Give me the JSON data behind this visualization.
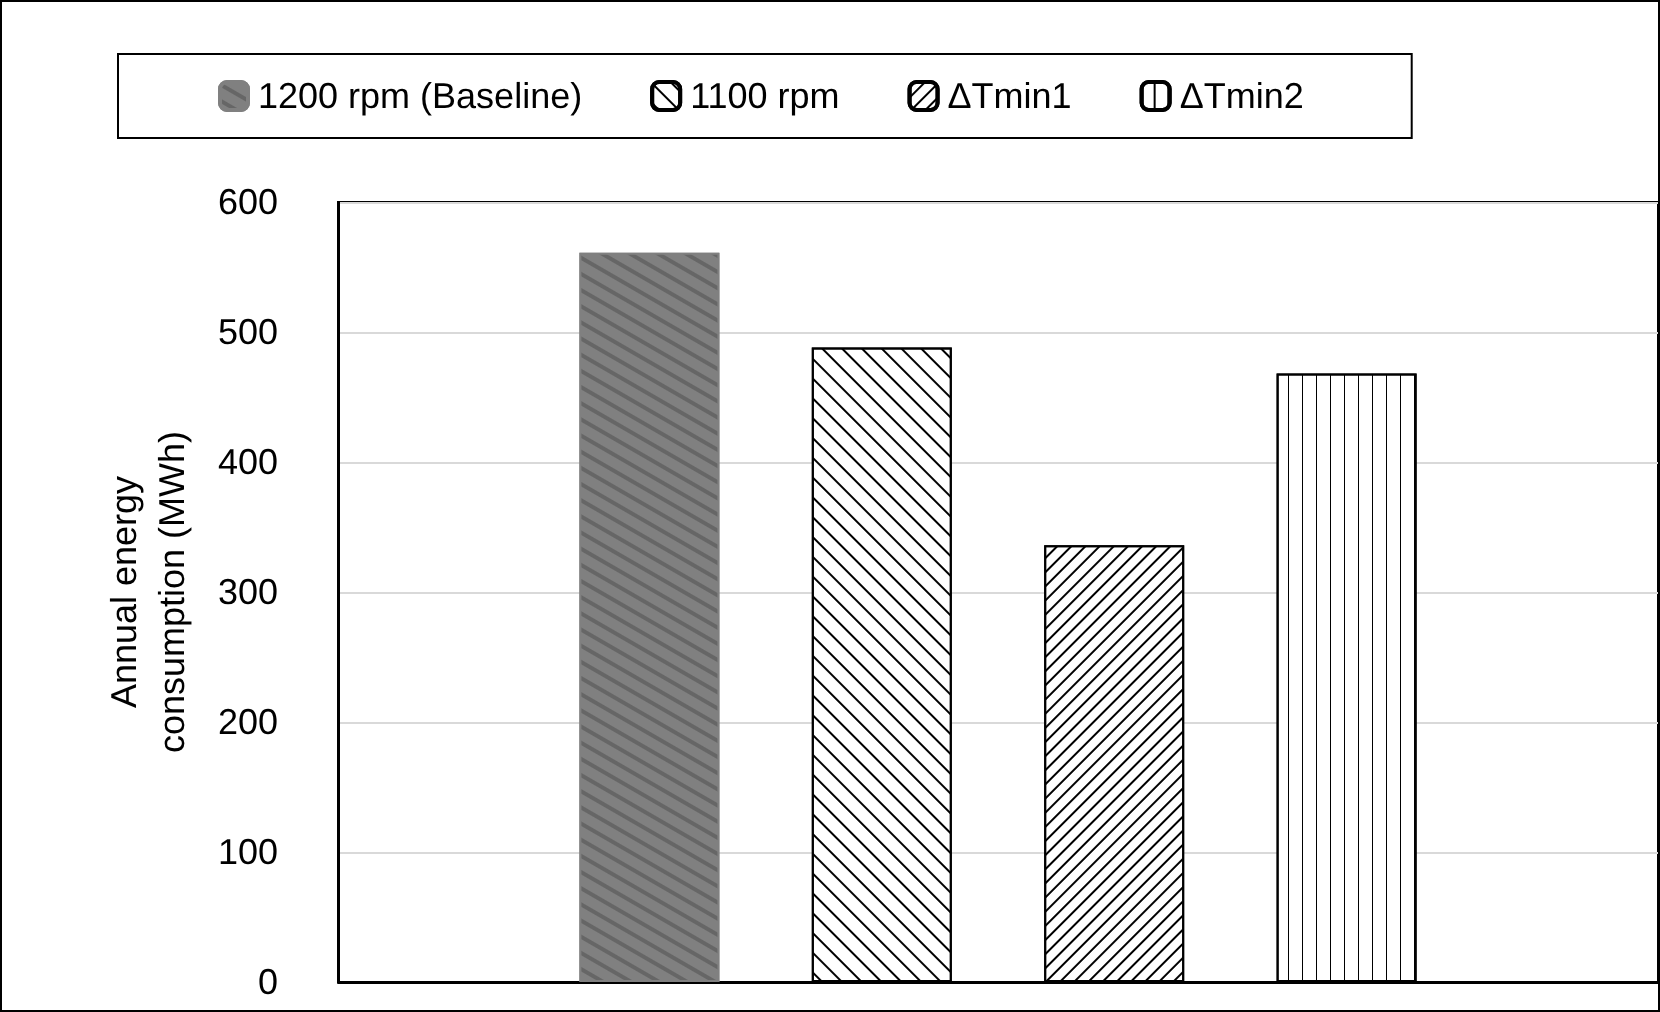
{
  "chart_data": {
    "type": "bar",
    "ylabel": "Annual energy\nconsumption (MWh)",
    "categories": [
      null
    ],
    "series": [
      {
        "name": "1200 rpm (Baseline)",
        "color": "#808080",
        "values": [
          561
        ]
      },
      {
        "name": "1100 rpm",
        "color": "#ffffff",
        "values": [
          488
        ]
      },
      {
        "name": "ΔTmin1",
        "color": "#ffffff",
        "values": [
          336
        ]
      },
      {
        "name": "ΔTmin2",
        "color": "#ffffff",
        "values": [
          468
        ]
      }
    ],
    "ylim": [
      0,
      600
    ],
    "yticks": [
      0,
      100,
      200,
      300,
      400,
      500,
      600
    ],
    "grid": "y",
    "legend": "top"
  }
}
